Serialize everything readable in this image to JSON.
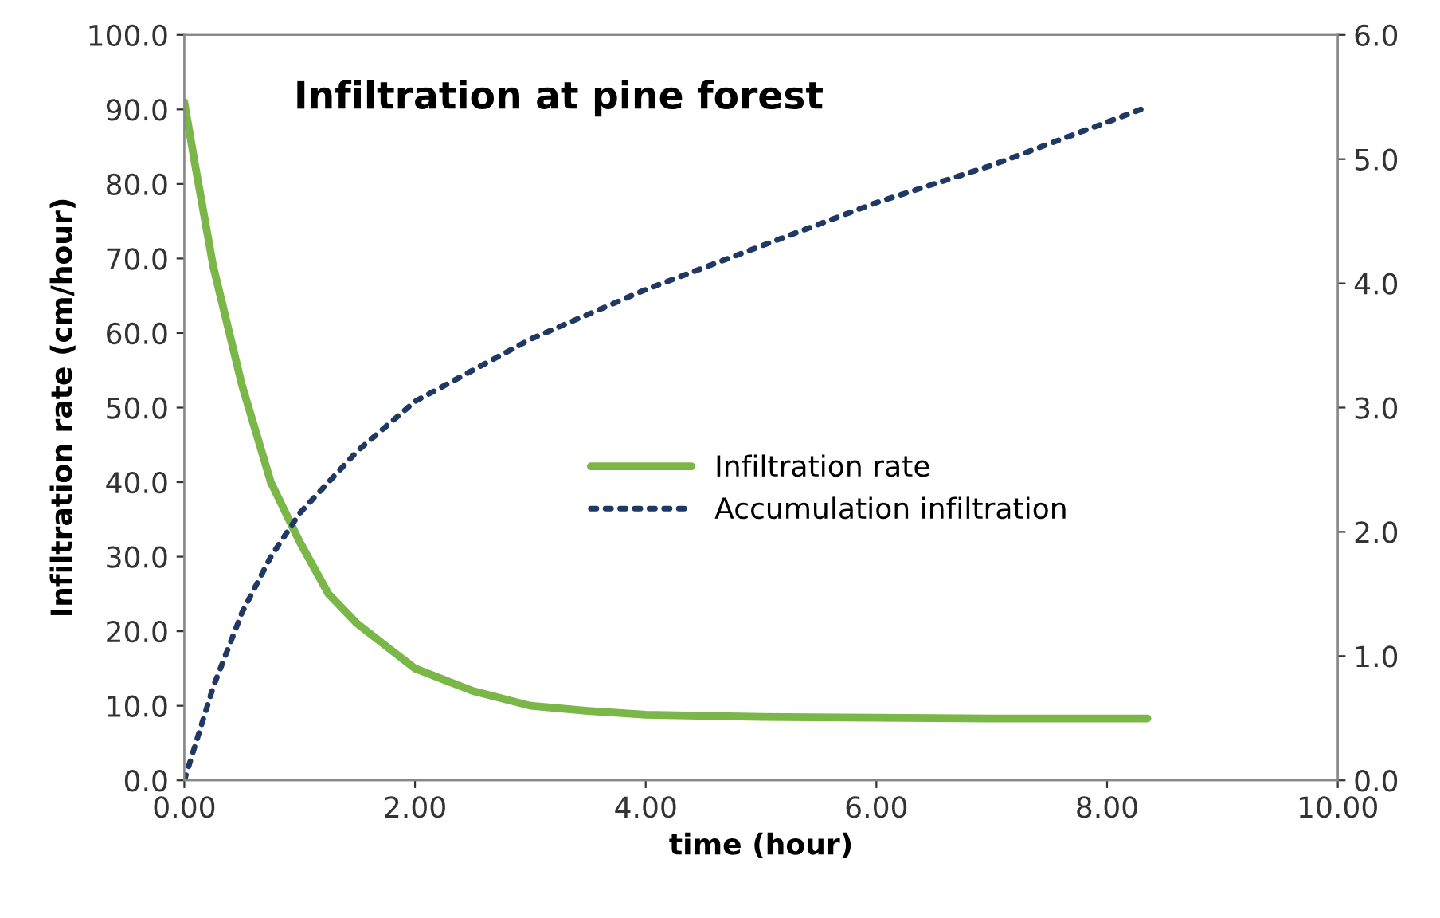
{
  "chart_data": {
    "type": "line",
    "title": "Infiltration at pine forest",
    "xlabel": "time (hour)",
    "ylabel": "Infiltration rate (cm/hour)",
    "x": [
      0,
      0.1,
      0.25,
      0.5,
      0.75,
      1,
      1.25,
      1.5,
      2,
      2.5,
      3,
      3.5,
      4,
      5,
      6,
      7,
      8.35
    ],
    "series": [
      {
        "name": "Infiltration rate",
        "color": "#7ab648",
        "line_style": "solid",
        "values": [
          91,
          82,
          69,
          53,
          40,
          32,
          25,
          21,
          15,
          12,
          10,
          9.3,
          8.8,
          8.5,
          8.4,
          8.3,
          8.3
        ]
      },
      {
        "name": "Accumulation infiltration",
        "color": "#1f3864",
        "line_style": "dotted",
        "axis": "y2",
        "x": [
          0,
          0.1,
          0.25,
          0.5,
          0.75,
          1,
          1.5,
          2,
          3,
          4,
          5,
          6,
          7,
          8.35
        ],
        "values": [
          0,
          0.3,
          0.75,
          1.35,
          1.8,
          2.15,
          2.65,
          3.05,
          3.55,
          3.95,
          4.3,
          4.65,
          4.95,
          5.42
        ]
      }
    ],
    "xlim": [
      0,
      10
    ],
    "xticks": [
      {
        "value": 0,
        "label": "0.00"
      },
      {
        "value": 2,
        "label": "2.00"
      },
      {
        "value": 4,
        "label": "4.00"
      },
      {
        "value": 6,
        "label": "6.00"
      },
      {
        "value": 8,
        "label": "8.00"
      },
      {
        "value": 10,
        "label": "10.00"
      }
    ],
    "ylim": [
      0,
      100
    ],
    "yticks": [
      {
        "value": 0,
        "label": "0.0"
      },
      {
        "value": 10,
        "label": "10.0"
      },
      {
        "value": 20,
        "label": "20.0"
      },
      {
        "value": 30,
        "label": "30.0"
      },
      {
        "value": 40,
        "label": "40.0"
      },
      {
        "value": 50,
        "label": "50.0"
      },
      {
        "value": 60,
        "label": "60.0"
      },
      {
        "value": 70,
        "label": "70.0"
      },
      {
        "value": 80,
        "label": "80.0"
      },
      {
        "value": 90,
        "label": "90.0"
      },
      {
        "value": 100,
        "label": "100.0"
      }
    ],
    "y2lim": [
      0,
      6
    ],
    "y2ticks": [
      {
        "value": 0,
        "label": "0.0"
      },
      {
        "value": 1,
        "label": "1.0"
      },
      {
        "value": 2,
        "label": "2.0"
      },
      {
        "value": 3,
        "label": "3.0"
      },
      {
        "value": 4,
        "label": "4.0"
      },
      {
        "value": 5,
        "label": "5.0"
      },
      {
        "value": 6,
        "label": "6.0"
      }
    ],
    "legend": "center",
    "grid": false
  }
}
